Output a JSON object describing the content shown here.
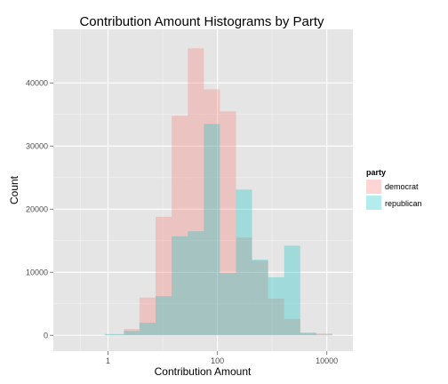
{
  "chart_data": {
    "type": "bar",
    "title": "Contribution Amount Histograms by Party",
    "xlabel": "Contribution Amount",
    "ylabel": "Count",
    "x_scale": "log10",
    "xlim": [
      0.1,
      30000
    ],
    "ylim": [
      -2500,
      48500
    ],
    "x_ticks": [
      {
        "value": 1,
        "label": "1"
      },
      {
        "value": 100,
        "label": "100"
      },
      {
        "value": 10000,
        "label": "10000"
      }
    ],
    "y_ticks": [
      {
        "value": 0,
        "label": "0"
      },
      {
        "value": 10000,
        "label": "10000"
      },
      {
        "value": 20000,
        "label": "20000"
      },
      {
        "value": 30000,
        "label": "30000"
      },
      {
        "value": 40000,
        "label": "40000"
      }
    ],
    "grid": true,
    "bin_edges": [
      0.87,
      1.95,
      3.75,
      7.4,
      14.6,
      28.7,
      56.6,
      111,
      219,
      430,
      846,
      1660,
      3270,
      6430,
      12600
    ],
    "legend": {
      "title": "party",
      "position": "right"
    },
    "series": [
      {
        "name": "democrat",
        "color": "#F8766D",
        "values": [
          100,
          1000,
          6000,
          18800,
          34800,
          45500,
          39000,
          35500,
          15500,
          11800,
          5800,
          2600,
          400,
          300
        ]
      },
      {
        "name": "republican",
        "color": "#00BFC4",
        "values": [
          200,
          700,
          2000,
          6200,
          15700,
          16500,
          33500,
          9900,
          23100,
          12000,
          9200,
          14200,
          400,
          100
        ]
      }
    ]
  }
}
